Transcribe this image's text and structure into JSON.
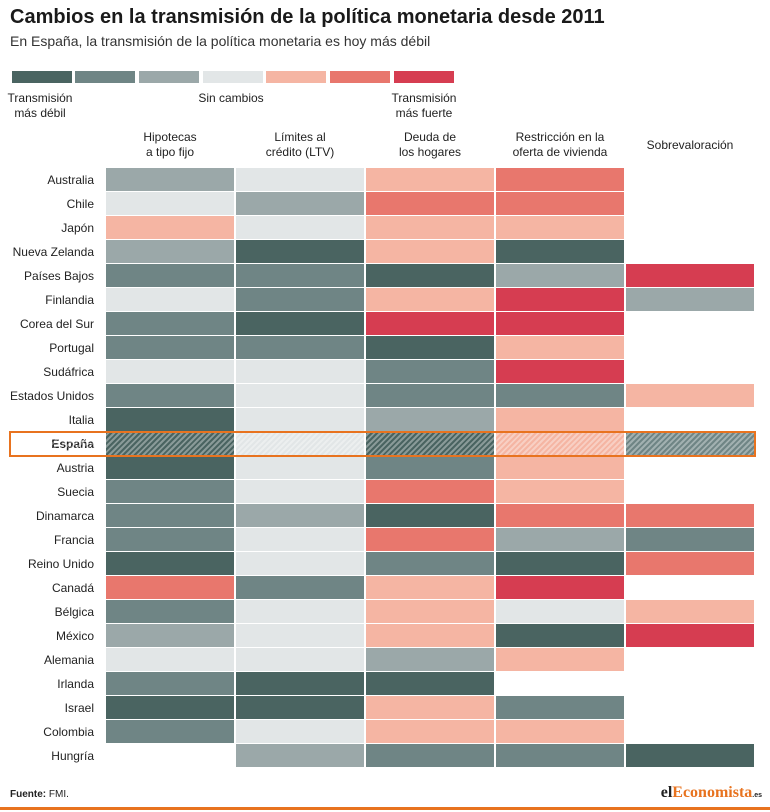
{
  "title": "Cambios en la transmisión de la política monetaria desde 2011",
  "subtitle": "En España, la transmisión de la política monetaria es hoy más débil",
  "legend": {
    "colors": [
      "#4a6461",
      "#6f8585",
      "#9ba8a9",
      "#e2e6e7",
      "#f5b5a3",
      "#e8776d",
      "#d63d51"
    ],
    "labels": {
      "left": "Transmisión\nmás débil",
      "center": "Sin cambios",
      "right": "Transmisión\nmás fuerte"
    }
  },
  "source": {
    "label": "Fuente:",
    "text": "FMI."
  },
  "logo": {
    "part1": "el",
    "part2": "Economista",
    "suffix": ".es"
  },
  "chart_data": {
    "type": "heatmap",
    "scale_note": "Values from -3 (transmisión más débil) to 3 (transmisión más fuerte); 0 = sin cambios; null = sin dato",
    "columns": [
      "Hipotecas\na tipo fijo",
      "Límites al\ncrédito (LTV)",
      "Deuda de\nlos hogares",
      "Restricción en la\noferta de vivienda",
      "Sobrevaloración"
    ],
    "highlight_row": "España",
    "rows": [
      {
        "name": "Australia",
        "values": [
          -1,
          0,
          1,
          2,
          null
        ]
      },
      {
        "name": "Chile",
        "values": [
          0,
          -1,
          2,
          2,
          null
        ]
      },
      {
        "name": "Japón",
        "values": [
          1,
          0,
          1,
          1,
          null
        ]
      },
      {
        "name": "Nueva Zelanda",
        "values": [
          -1,
          -3,
          1,
          -3,
          null
        ]
      },
      {
        "name": "Países Bajos",
        "values": [
          -2,
          -2,
          -3,
          -1,
          3
        ]
      },
      {
        "name": "Finlandia",
        "values": [
          0,
          -2,
          1,
          3,
          -1
        ]
      },
      {
        "name": "Corea del Sur",
        "values": [
          -2,
          -3,
          3,
          3,
          null
        ]
      },
      {
        "name": "Portugal",
        "values": [
          -2,
          -2,
          -3,
          1,
          null
        ]
      },
      {
        "name": "Sudáfrica",
        "values": [
          0,
          0,
          -2,
          3,
          null
        ]
      },
      {
        "name": "Estados Unidos",
        "values": [
          -2,
          0,
          -2,
          -2,
          1
        ]
      },
      {
        "name": "Italia",
        "values": [
          -3,
          0,
          -1,
          1,
          null
        ]
      },
      {
        "name": "España",
        "values": [
          -3,
          0,
          -3,
          1,
          -2
        ]
      },
      {
        "name": "Austria",
        "values": [
          -3,
          0,
          -2,
          1,
          null
        ]
      },
      {
        "name": "Suecia",
        "values": [
          -2,
          0,
          2,
          1,
          null
        ]
      },
      {
        "name": "Dinamarca",
        "values": [
          -2,
          -1,
          -3,
          2,
          2
        ]
      },
      {
        "name": "Francia",
        "values": [
          -2,
          0,
          2,
          -1,
          -2
        ]
      },
      {
        "name": "Reino Unido",
        "values": [
          -3,
          0,
          -2,
          -3,
          2
        ]
      },
      {
        "name": "Canadá",
        "values": [
          2,
          -2,
          1,
          3,
          null
        ]
      },
      {
        "name": "Bélgica",
        "values": [
          -2,
          0,
          1,
          0,
          1
        ]
      },
      {
        "name": "México",
        "values": [
          -1,
          0,
          1,
          -3,
          3
        ]
      },
      {
        "name": "Alemania",
        "values": [
          0,
          0,
          -1,
          1,
          null
        ]
      },
      {
        "name": "Irlanda",
        "values": [
          -2,
          -3,
          -3,
          null,
          null
        ]
      },
      {
        "name": "Israel",
        "values": [
          -3,
          -3,
          1,
          -2,
          null
        ]
      },
      {
        "name": "Colombia",
        "values": [
          -2,
          0,
          1,
          1,
          null
        ]
      },
      {
        "name": "Hungría",
        "values": [
          null,
          -1,
          -2,
          -2,
          -3
        ]
      }
    ]
  }
}
